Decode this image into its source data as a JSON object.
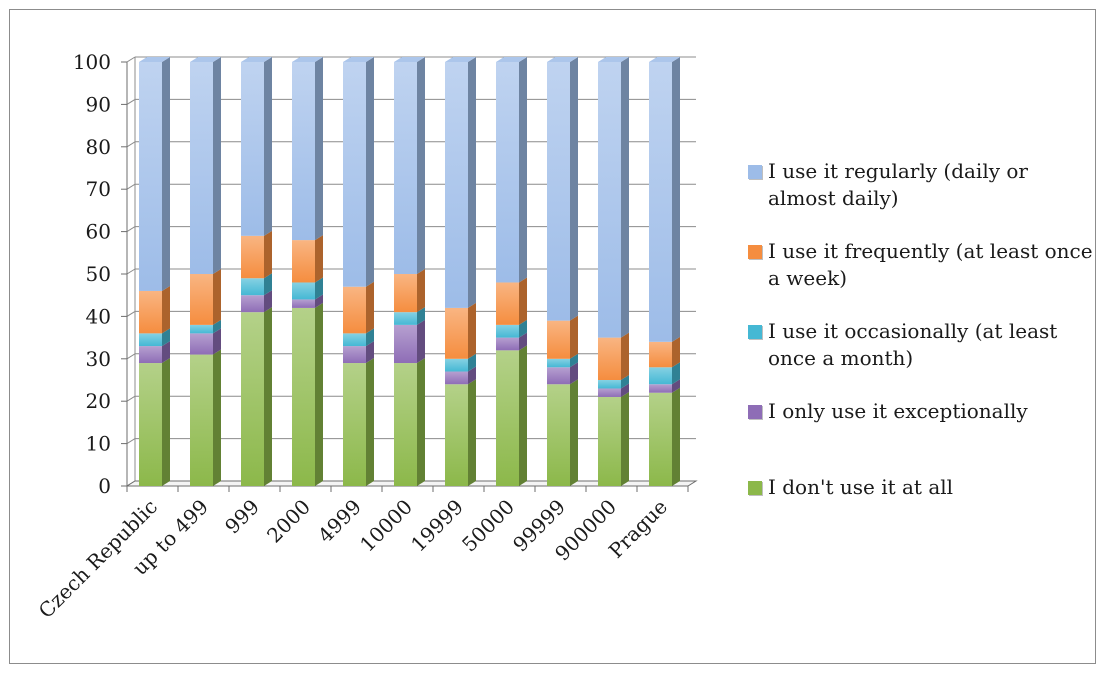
{
  "chart_data": {
    "type": "bar",
    "stacked": true,
    "style": "3d-column-100-percent",
    "categories": [
      "Czech Republic",
      "up to 499",
      "999",
      "2000",
      "4999",
      "10000",
      "19999",
      "50000",
      "99999",
      "900000",
      "Prague"
    ],
    "ylim": [
      0,
      100
    ],
    "yticks": [
      "0",
      "10",
      "20",
      "30",
      "40",
      "50",
      "60",
      "70",
      "80",
      "90",
      "100"
    ],
    "grid": true,
    "legend_position": "right",
    "series": [
      {
        "name": "I don't use it at all",
        "color": "#8cb84a",
        "values": [
          29,
          31,
          41,
          42,
          29,
          29,
          24,
          32,
          24,
          21,
          22
        ]
      },
      {
        "name": "I only use it exceptionally",
        "color": "#8e6db6",
        "values": [
          4,
          5,
          4,
          2,
          4,
          9,
          3,
          3,
          4,
          2,
          2
        ]
      },
      {
        "name": "I use it occasionally (at least once a month)",
        "color": "#45b8d4",
        "values": [
          3,
          2,
          4,
          4,
          3,
          3,
          3,
          3,
          2,
          2,
          4
        ]
      },
      {
        "name": "I use it frequently (at least once a week)",
        "color": "#f58d3f",
        "values": [
          10,
          12,
          10,
          10,
          11,
          9,
          12,
          10,
          9,
          10,
          6
        ]
      },
      {
        "name": "I use it regularly (daily or almost daily)",
        "color": "#9dbce8",
        "values": [
          54,
          50,
          41,
          42,
          53,
          50,
          58,
          52,
          61,
          65,
          66
        ]
      }
    ]
  }
}
